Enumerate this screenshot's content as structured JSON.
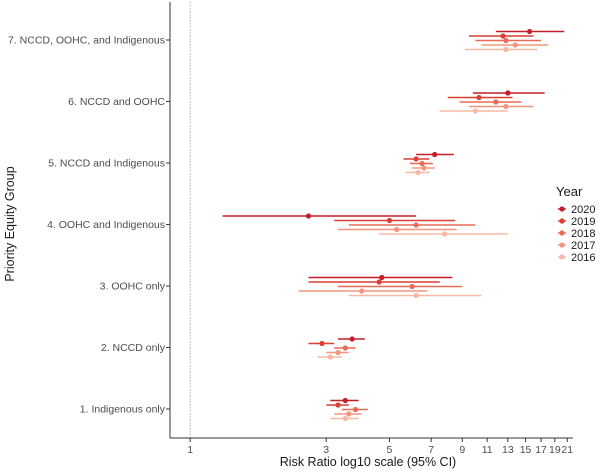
{
  "chart_data": {
    "type": "scatter",
    "subtype": "forest-plot",
    "xlabel": "Risk Ratio log10 scale (95% CI)",
    "ylabel": "Priority Equity Group",
    "x_scale": "log10",
    "xlim": [
      0.85,
      22
    ],
    "x_ticks": [
      1,
      3,
      5,
      7,
      9,
      11,
      13,
      15,
      17,
      19,
      21
    ],
    "x_tick_labels": [
      "1",
      "3",
      "5",
      "7",
      "9",
      "11",
      "13",
      "15",
      "17",
      "19",
      "21"
    ],
    "reference_line": 1,
    "legend": {
      "title": "Year",
      "placement": "right",
      "entries": [
        "2020",
        "2019",
        "2018",
        "2017",
        "2016"
      ]
    },
    "colors": {
      "2020": "#c41f28",
      "2019": "#dc3f32",
      "2018": "#ea6a56",
      "2017": "#f3957e",
      "2016": "#f8b9a4"
    },
    "categories": [
      "1. Indigenous only",
      "2. NCCD only",
      "3. OOHC only",
      "4. OOHC and Indigenous",
      "5. NCCD and Indigenous",
      "6. NCCD and OOHC",
      "7. NCCD, OOHC, and Indigenous"
    ],
    "series": [
      {
        "name": "2020",
        "estimate": [
          3.5,
          3.7,
          4.7,
          2.6,
          7.2,
          13.0,
          15.5
        ],
        "lower": [
          3.1,
          3.3,
          2.6,
          1.3,
          6.2,
          9.8,
          11.8
        ],
        "upper": [
          3.9,
          4.1,
          8.3,
          6.2,
          8.4,
          17.5,
          20.5
        ]
      },
      {
        "name": "2019",
        "estimate": [
          3.3,
          2.9,
          4.6,
          5.0,
          6.2,
          10.3,
          12.5
        ],
        "lower": [
          3.0,
          2.6,
          2.6,
          3.2,
          5.6,
          8.0,
          9.5
        ],
        "upper": [
          3.6,
          3.2,
          7.5,
          8.5,
          6.9,
          13.5,
          16.0
        ]
      },
      {
        "name": "2018",
        "estimate": [
          3.8,
          3.5,
          6.0,
          6.2,
          6.5,
          11.8,
          12.8
        ],
        "lower": [
          3.4,
          3.2,
          3.3,
          3.6,
          5.9,
          8.8,
          10.0
        ],
        "upper": [
          4.2,
          3.8,
          9.0,
          10.0,
          7.1,
          14.5,
          17.0
        ]
      },
      {
        "name": "2017",
        "estimate": [
          3.6,
          3.3,
          4.0,
          5.3,
          6.6,
          12.8,
          13.8
        ],
        "lower": [
          3.2,
          3.0,
          2.4,
          3.3,
          6.0,
          9.5,
          10.5
        ],
        "upper": [
          4.0,
          3.6,
          6.8,
          8.6,
          7.2,
          16.0,
          18.0
        ]
      },
      {
        "name": "2016",
        "estimate": [
          3.5,
          3.1,
          6.2,
          7.8,
          6.3,
          10.0,
          12.8
        ],
        "lower": [
          3.1,
          2.8,
          3.6,
          4.6,
          5.7,
          7.5,
          9.2
        ],
        "upper": [
          3.9,
          3.4,
          10.5,
          13.0,
          6.9,
          13.0,
          16.5
        ]
      }
    ]
  }
}
